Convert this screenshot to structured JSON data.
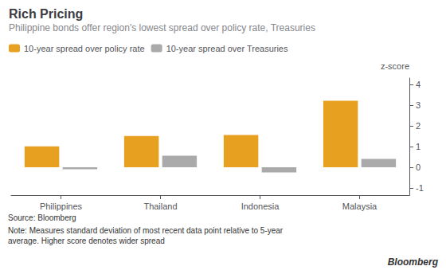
{
  "chart_data": {
    "type": "bar",
    "title": "Rich Pricing",
    "subtitle": "Philippine bonds offer region's lowest spread over policy rate, Treasuries",
    "categories": [
      "Philippines",
      "Thailand",
      "Indonesia",
      "Malaysia"
    ],
    "series": [
      {
        "name": "10-year spread over policy rate",
        "color": "#E8A020",
        "values": [
          1.0,
          1.5,
          1.55,
          3.2
        ]
      },
      {
        "name": "10-year spread over Treasuries",
        "color": "#AAAAAA",
        "values": [
          -0.1,
          0.55,
          -0.25,
          0.4
        ]
      }
    ],
    "ylabel": "z-score",
    "ylim": [
      -1.35,
      4.3
    ],
    "yticks": [
      -1,
      0,
      1,
      2,
      3,
      4
    ],
    "grid": false,
    "legend": "upper left",
    "annotations": [
      "Source: Bloomberg",
      "Note: Measures standard deviation of most recent data point relative to 5-year\naverage. Higher score denotes wider spread",
      "Bloomberg"
    ]
  }
}
